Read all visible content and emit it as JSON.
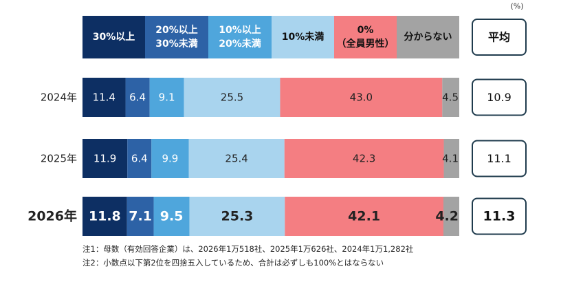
{
  "unit_label": "(%)",
  "average_header": "平均",
  "legend": [
    {
      "lines": [
        "30%以上"
      ],
      "color": "#0d2f63",
      "text_color": "#ffffff"
    },
    {
      "lines": [
        "20%以上",
        "30%未満"
      ],
      "color": "#2d62a6",
      "text_color": "#ffffff"
    },
    {
      "lines": [
        "10%以上",
        "20%未満"
      ],
      "color": "#4fa6dc",
      "text_color": "#ffffff"
    },
    {
      "lines": [
        "10%未満"
      ],
      "color": "#a9d4ee",
      "text_color": "#111111"
    },
    {
      "lines": [
        "0%",
        "（全員男性）"
      ],
      "color": "#f47e82",
      "text_color": "#111111"
    },
    {
      "lines": [
        "分からない"
      ],
      "color": "#a3a3a3",
      "text_color": "#111111"
    }
  ],
  "chart_data": {
    "type": "bar",
    "orientation": "horizontal",
    "stacked": true,
    "categories": [
      "2024年",
      "2025年",
      "2026年"
    ],
    "series": [
      {
        "name": "30%以上",
        "values": [
          11.4,
          11.9,
          11.8
        ]
      },
      {
        "name": "20%以上30%未満",
        "values": [
          6.4,
          6.4,
          7.1
        ]
      },
      {
        "name": "10%以上20%未満",
        "values": [
          9.1,
          9.9,
          9.5
        ]
      },
      {
        "name": "10%未満",
        "values": [
          25.5,
          25.4,
          25.3
        ]
      },
      {
        "name": "0%（全員男性）",
        "values": [
          43.0,
          42.3,
          42.1
        ]
      },
      {
        "name": "分からない",
        "values": [
          4.5,
          4.1,
          4.2
        ]
      }
    ],
    "value_labels": [
      [
        "11.4",
        "6.4",
        "9.1",
        "25.5",
        "43.0",
        "4.5"
      ],
      [
        "11.9",
        "6.4",
        "9.9",
        "25.4",
        "42.3",
        "4.1"
      ],
      [
        "11.8",
        "7.1",
        "9.5",
        "25.3",
        "42.1",
        "4.2"
      ]
    ],
    "averages": [
      "10.9",
      "11.1",
      "11.3"
    ],
    "highlight_category": "2026年"
  },
  "notes": [
    "注1：母数（有効回答企業）は、2026年1万518社、2025年1万626社、2024年1万1,282社",
    "注2：小数点以下第2位を四捨五入しているため、合計は必ずしも100%とはならない"
  ]
}
